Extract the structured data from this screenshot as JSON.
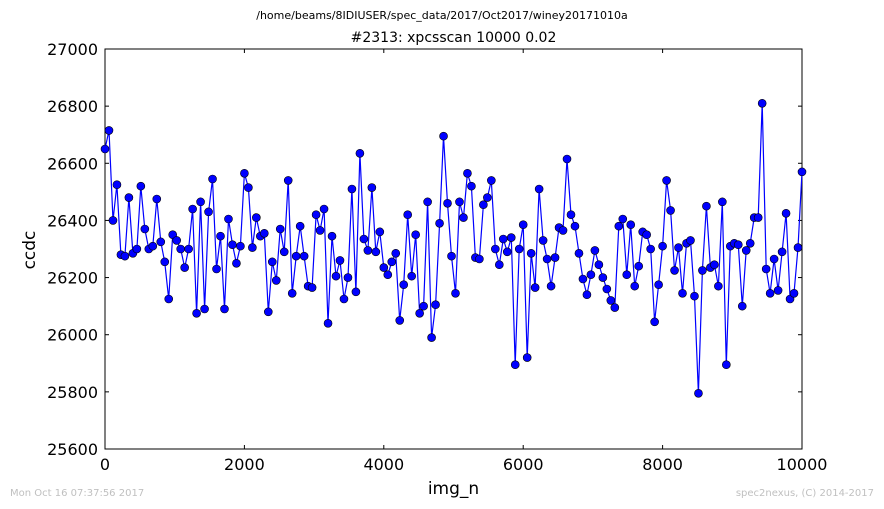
{
  "header": {
    "supertitle": "/home/beams/8IDIUSER/spec_data/2017/Oct2017/winey20171010a"
  },
  "footer": {
    "timestamp": "Mon Oct 16 07:37:56 2017",
    "credit": "spec2nexus, (C) 2014-2017"
  },
  "chart_data": {
    "type": "line",
    "title": "#2313: xpcsscan 10000 0.02",
    "xlabel": "img_n",
    "ylabel": "ccdc",
    "xlim": [
      0,
      10000
    ],
    "ylim": [
      25600,
      27000
    ],
    "xticks": [
      0,
      2000,
      4000,
      6000,
      8000,
      10000
    ],
    "yticks": [
      25600,
      25800,
      26000,
      26200,
      26400,
      26600,
      26800,
      27000
    ],
    "grid": false,
    "marker": "circle",
    "line_color": "#0000ff",
    "marker_color": "#0000ff",
    "series": [
      {
        "y": [
          26650,
          26715,
          26400,
          26525,
          26280,
          26275,
          26480,
          26285,
          26300,
          26520,
          26370,
          26300,
          26310,
          26475,
          26325,
          26255,
          26125,
          26350,
          26330,
          26300,
          26235,
          26300,
          26440,
          26075,
          26465,
          26090,
          26430,
          26545,
          26230,
          26345,
          26090,
          26405,
          26315,
          26250,
          26310,
          26565,
          26515,
          26305,
          26410,
          26345,
          26355,
          26080,
          26255,
          26190,
          26370,
          26290,
          26540,
          26145,
          26275,
          26380,
          26275,
          26170,
          26165,
          26420,
          26365,
          26440,
          26040,
          26345,
          26205,
          26260,
          26125,
          26200,
          26510,
          26150,
          26635,
          26335,
          26295,
          26515,
          26290,
          26360,
          26235,
          26210,
          26255,
          26285,
          26050,
          26175,
          26420,
          26205,
          26350,
          26075,
          26100,
          26465,
          25990,
          26105,
          26390,
          26695,
          26460,
          26275,
          26145,
          26465,
          26410,
          26565,
          26520,
          26270,
          26265,
          26455,
          26480,
          26540,
          26300,
          26245,
          26335,
          26290,
          26340,
          25895,
          26300,
          26385,
          25920,
          26285,
          26165,
          26510,
          26330,
          26265,
          26170,
          26270,
          26375,
          26365,
          26615,
          26420,
          26380,
          26285,
          26195,
          26140,
          26210,
          26295,
          26245,
          26200,
          26160,
          26120,
          26095,
          26380,
          26405,
          26210,
          26385,
          26170,
          26240,
          26360,
          26350,
          26300,
          26045,
          26175,
          26310,
          26540,
          26435,
          26225,
          26305,
          26145,
          26320,
          26330,
          26135,
          25795,
          26225,
          26450,
          26235,
          26245,
          26170,
          26465,
          25895,
          26310,
          26320,
          26315,
          26100,
          26295,
          26320,
          26410,
          26410,
          26810,
          26230,
          26145,
          26265,
          26155,
          26290,
          26425,
          26125,
          26145,
          26305,
          26570
        ]
      }
    ]
  }
}
